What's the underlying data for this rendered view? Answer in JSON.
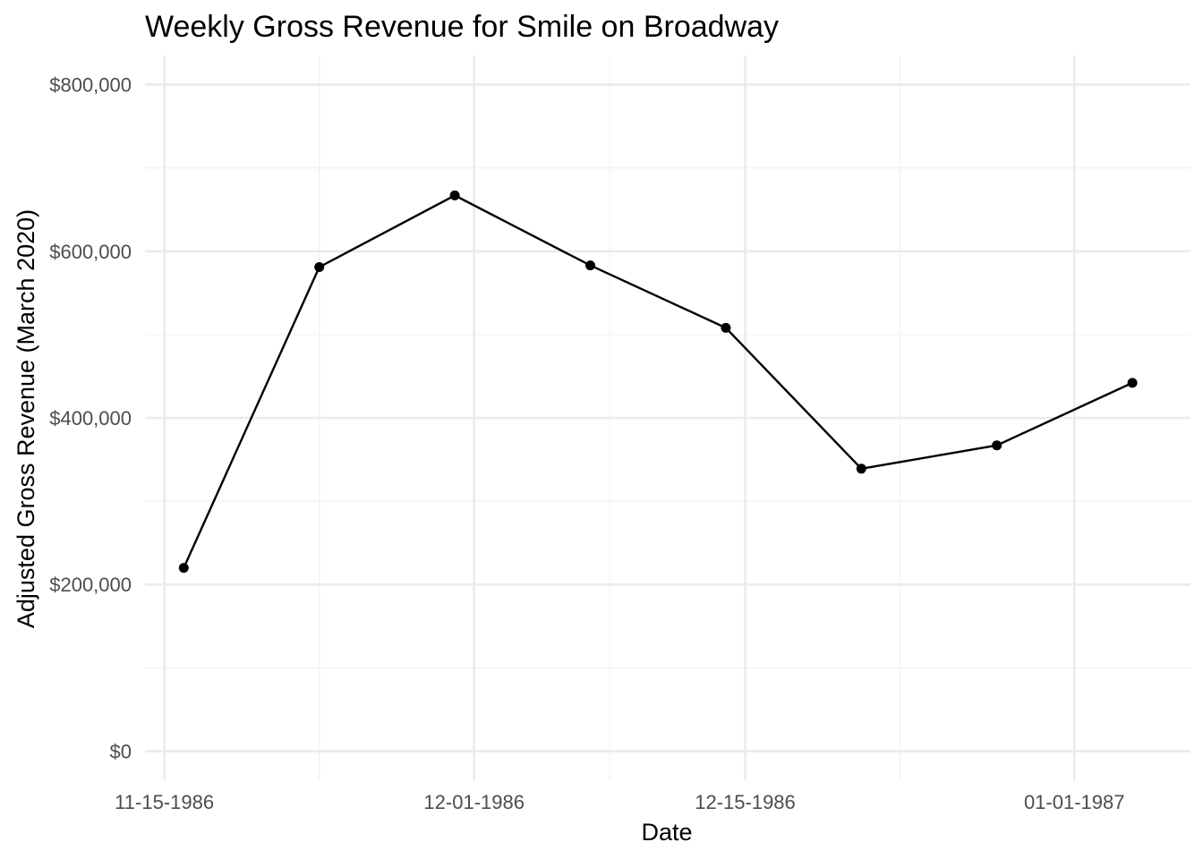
{
  "chart_data": {
    "type": "line",
    "title": "Weekly Gross Revenue for Smile on Broadway",
    "xlabel": "Date",
    "ylabel": "Adjusted Gross Revenue (March 2020)",
    "x_axis": {
      "scale": "date",
      "range": [
        "1986-11-14",
        "1987-01-07"
      ],
      "ticks": [
        {
          "date": "1986-11-15",
          "label": "11-15-1986"
        },
        {
          "date": "1986-12-01",
          "label": "12-01-1986"
        },
        {
          "date": "1986-12-15",
          "label": "12-15-1986"
        },
        {
          "date": "1987-01-01",
          "label": "01-01-1987"
        }
      ],
      "minor_ticks": [
        "1986-11-23",
        "1986-12-08",
        "1986-12-23"
      ]
    },
    "y_axis": {
      "range": [
        -35000,
        835000
      ],
      "ticks": [
        {
          "value": 0,
          "label": "$0"
        },
        {
          "value": 200000,
          "label": "$200,000"
        },
        {
          "value": 400000,
          "label": "$400,000"
        },
        {
          "value": 600000,
          "label": "$600,000"
        },
        {
          "value": 800000,
          "label": "$800,000"
        }
      ],
      "minor_ticks": [
        100000,
        300000,
        500000,
        700000
      ]
    },
    "grid": true,
    "series": [
      {
        "color": "#000000",
        "points": [
          {
            "x": "1986-11-16",
            "y": 220000
          },
          {
            "x": "1986-11-23",
            "y": 581000
          },
          {
            "x": "1986-11-30",
            "y": 667000
          },
          {
            "x": "1986-12-07",
            "y": 583000
          },
          {
            "x": "1986-12-14",
            "y": 508000
          },
          {
            "x": "1986-12-21",
            "y": 339000
          },
          {
            "x": "1986-12-28",
            "y": 367000
          },
          {
            "x": "1987-01-04",
            "y": 442000
          }
        ]
      }
    ]
  }
}
